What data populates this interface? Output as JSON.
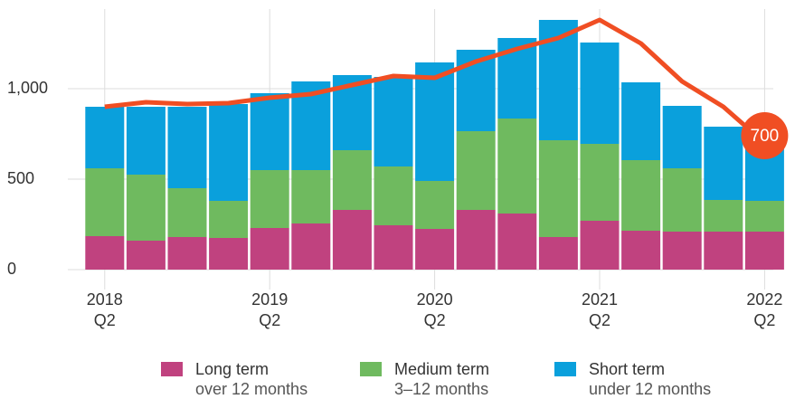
{
  "chart_data": {
    "type": "bar",
    "stacked": true,
    "categories": [
      [
        "2018",
        "Q2"
      ],
      null,
      null,
      null,
      [
        "2019",
        "Q2"
      ],
      null,
      null,
      null,
      [
        "2020",
        "Q2"
      ],
      null,
      null,
      null,
      [
        "2021",
        "Q2"
      ],
      null,
      null,
      null,
      [
        "2022",
        "Q2"
      ]
    ],
    "series": [
      {
        "name": "Long term",
        "description": "over 12 months",
        "color": "#c0427f",
        "values": [
          185,
          160,
          180,
          175,
          230,
          255,
          330,
          245,
          225,
          330,
          310,
          180,
          270,
          215,
          210,
          210,
          210
        ]
      },
      {
        "name": "Medium term",
        "description": "3–12 months",
        "color": "#6fba5f",
        "values": [
          375,
          365,
          270,
          205,
          320,
          295,
          330,
          325,
          265,
          435,
          525,
          535,
          425,
          390,
          350,
          175,
          170
        ]
      },
      {
        "name": "Short term",
        "description": "under 12 months",
        "color": "#0aa0dc",
        "values": [
          340,
          375,
          450,
          535,
          425,
          490,
          415,
          495,
          655,
          450,
          445,
          665,
          560,
          430,
          345,
          405,
          330
        ]
      }
    ],
    "line": {
      "color": "#f04e23",
      "values": [
        900,
        925,
        915,
        920,
        950,
        970,
        1020,
        1070,
        1060,
        1150,
        1220,
        1280,
        1380,
        1250,
        1040,
        900,
        700
      ]
    },
    "ylim": [
      0,
      1440
    ],
    "yticks": [
      0,
      500,
      {
        "value": 1000,
        "label": "1,000"
      }
    ],
    "grid": true
  }
}
